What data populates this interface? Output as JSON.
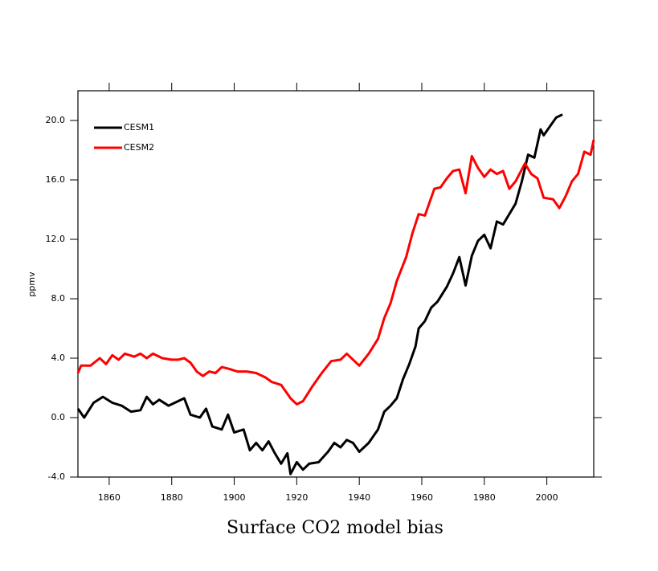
{
  "chart_data": {
    "type": "line",
    "title": "Surface CO2 model bias",
    "ylabel": "ppmv",
    "xlim": [
      1850,
      2015
    ],
    "xticks": [
      1860,
      1880,
      1900,
      1920,
      1940,
      1960,
      1980,
      2000
    ],
    "ylim": [
      -4,
      22
    ],
    "yticks": [
      {
        "value": -4,
        "label": "-4.0"
      },
      {
        "value": 0,
        "label": "0.0"
      },
      {
        "value": 4,
        "label": "4.0"
      },
      {
        "value": 8,
        "label": "8.0"
      },
      {
        "value": 12,
        "label": "12.0"
      },
      {
        "value": 16,
        "label": "16.0"
      },
      {
        "value": 20,
        "label": "20.0"
      }
    ],
    "legend": "upper-left",
    "series": [
      {
        "name": "CESM1",
        "color": "#000000",
        "x": [
          1850,
          1852,
          1855,
          1858,
          1861,
          1864,
          1867,
          1870,
          1872,
          1874,
          1876,
          1879,
          1882,
          1884,
          1886,
          1889,
          1891,
          1893,
          1896,
          1898,
          1900,
          1903,
          1905,
          1907,
          1909,
          1911,
          1913,
          1915,
          1917,
          1918,
          1920,
          1922,
          1924,
          1927,
          1930,
          1932,
          1934,
          1936,
          1938,
          1940,
          1943,
          1946,
          1948,
          1950,
          1952,
          1954,
          1956,
          1958,
          1959,
          1961,
          1963,
          1965,
          1968,
          1970,
          1972,
          1974,
          1976,
          1978,
          1980,
          1982,
          1984,
          1986,
          1988,
          1990,
          1992,
          1994,
          1996,
          1998,
          1999,
          2001,
          2003,
          2005
        ],
        "values": [
          0.6,
          0.0,
          1.0,
          1.4,
          1.0,
          0.8,
          0.4,
          0.5,
          1.4,
          0.9,
          1.2,
          0.8,
          1.1,
          1.3,
          0.2,
          0.0,
          0.6,
          -0.6,
          -0.8,
          0.2,
          -1.0,
          -0.8,
          -2.2,
          -1.7,
          -2.2,
          -1.6,
          -2.4,
          -3.1,
          -2.4,
          -3.8,
          -3.0,
          -3.5,
          -3.1,
          -3.0,
          -2.3,
          -1.7,
          -2.0,
          -1.5,
          -1.7,
          -2.3,
          -1.7,
          -0.8,
          0.4,
          0.8,
          1.3,
          2.6,
          3.6,
          4.8,
          6.0,
          6.5,
          7.4,
          7.8,
          8.8,
          9.7,
          10.8,
          8.9,
          10.9,
          11.9,
          12.3,
          11.4,
          13.2,
          13.0,
          13.7,
          14.4,
          15.9,
          17.7,
          17.5,
          19.4,
          19.0,
          19.6,
          20.2,
          20.4
        ]
      },
      {
        "name": "CESM2",
        "color": "#ff0000",
        "x": [
          1850,
          1851,
          1854,
          1857,
          1859,
          1861,
          1863,
          1865,
          1868,
          1870,
          1872,
          1874,
          1877,
          1880,
          1882,
          1884,
          1886,
          1888,
          1890,
          1892,
          1894,
          1896,
          1898,
          1901,
          1904,
          1907,
          1910,
          1912,
          1915,
          1918,
          1920,
          1922,
          1925,
          1928,
          1931,
          1934,
          1936,
          1940,
          1943,
          1946,
          1948,
          1950,
          1952,
          1955,
          1957,
          1959,
          1961,
          1964,
          1966,
          1968,
          1970,
          1972,
          1974,
          1976,
          1978,
          1980,
          1982,
          1984,
          1986,
          1988,
          1990,
          1993,
          1995,
          1997,
          1999,
          2002,
          2004,
          2006,
          2008,
          2010,
          2012,
          2014,
          2015
        ],
        "values": [
          3.0,
          3.5,
          3.5,
          4.0,
          3.6,
          4.2,
          3.9,
          4.3,
          4.1,
          4.3,
          4.0,
          4.3,
          4.0,
          3.9,
          3.9,
          4.0,
          3.7,
          3.1,
          2.8,
          3.1,
          3.0,
          3.4,
          3.3,
          3.1,
          3.1,
          3.0,
          2.7,
          2.4,
          2.2,
          1.3,
          0.9,
          1.1,
          2.1,
          3.0,
          3.8,
          3.9,
          4.3,
          3.5,
          4.3,
          5.3,
          6.7,
          7.7,
          9.2,
          10.8,
          12.4,
          13.7,
          13.6,
          15.4,
          15.5,
          16.1,
          16.6,
          16.7,
          15.1,
          17.6,
          16.8,
          16.2,
          16.7,
          16.4,
          16.6,
          15.4,
          15.9,
          17.1,
          16.4,
          16.1,
          14.8,
          14.7,
          14.1,
          14.9,
          15.9,
          16.4,
          17.9,
          17.7,
          18.7
        ]
      }
    ]
  }
}
